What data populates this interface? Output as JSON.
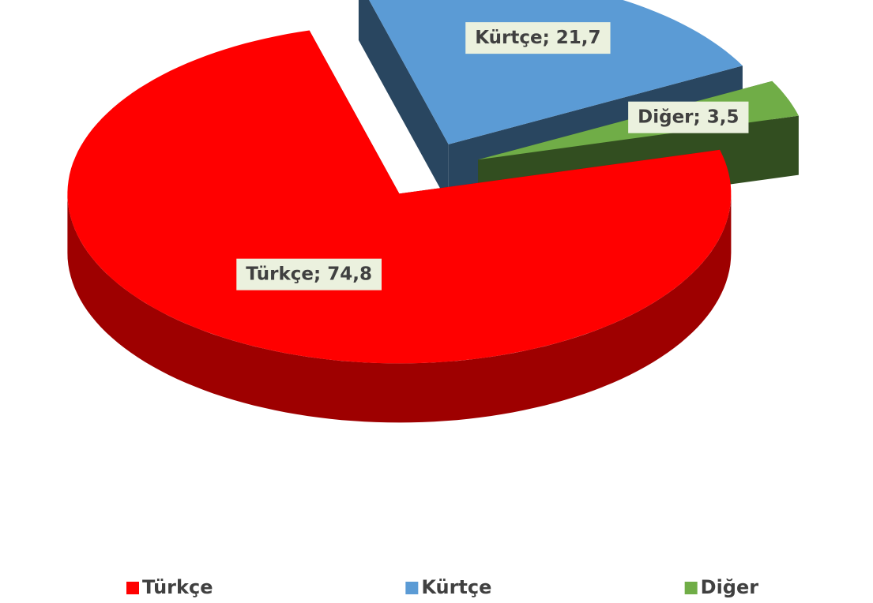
{
  "chart_data": {
    "type": "pie",
    "categories": [
      "Türkçe",
      "Kürtçe",
      "Diğer"
    ],
    "values": [
      74.8,
      21.7,
      3.5
    ],
    "value_labels": [
      "Türkçe; 74,8",
      "Kürtçe; 21,7",
      "Diğer; 3,5"
    ],
    "colors": [
      "#ff0000",
      "#5b9bd5",
      "#70ad47"
    ],
    "legend": "bottom"
  }
}
